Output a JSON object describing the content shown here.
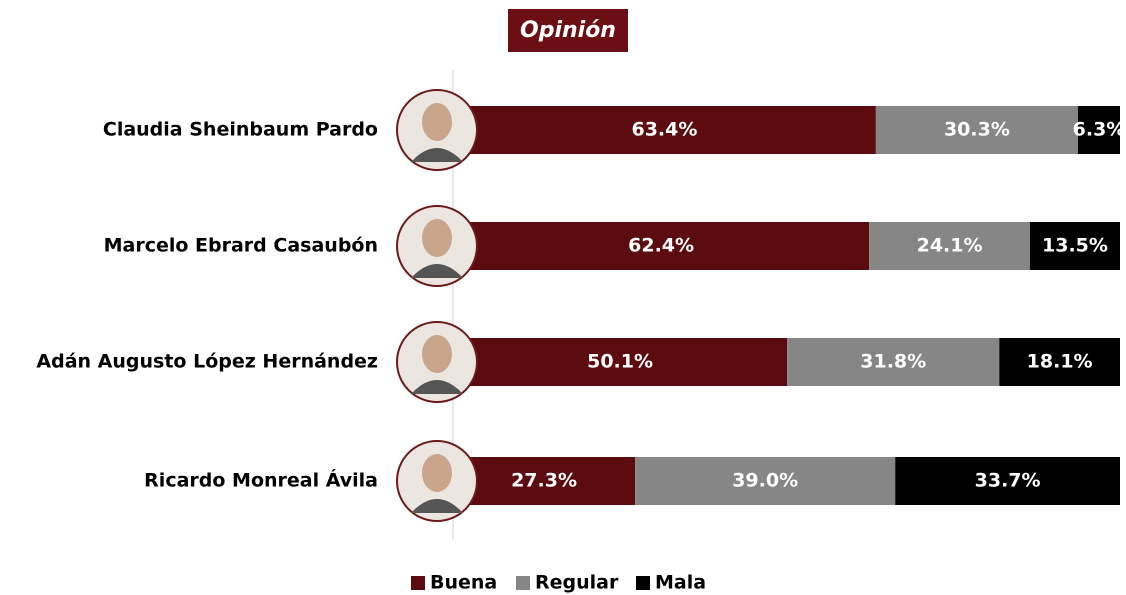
{
  "chart_data": {
    "type": "stacked-bar-horizontal",
    "title": "Opinión",
    "categories": [
      "Claudia Sheinbaum Pardo",
      "Marcelo Ebrard Casaubón",
      "Adán Augusto López Hernández",
      "Ricardo Monreal Ávila"
    ],
    "series": [
      {
        "name": "Buena",
        "color": "#5c0b0e",
        "values": [
          63.4,
          62.4,
          50.1,
          27.3
        ],
        "value_labels": [
          "63.4%",
          "62.4%",
          "50.1%",
          "27.3%"
        ]
      },
      {
        "name": "Regular",
        "color": "#868686",
        "values": [
          30.3,
          24.1,
          31.8,
          39.0
        ],
        "value_labels": [
          "30.3%",
          "24.1%",
          "31.8%",
          "39.0%"
        ]
      },
      {
        "name": "Mala",
        "color": "#000000",
        "values": [
          6.3,
          13.5,
          18.1,
          33.7
        ],
        "value_labels": [
          "6.3%",
          "13.5%",
          "18.1%",
          "33.7%"
        ]
      }
    ],
    "xlim": [
      0,
      100
    ],
    "legend": "bottom"
  }
}
